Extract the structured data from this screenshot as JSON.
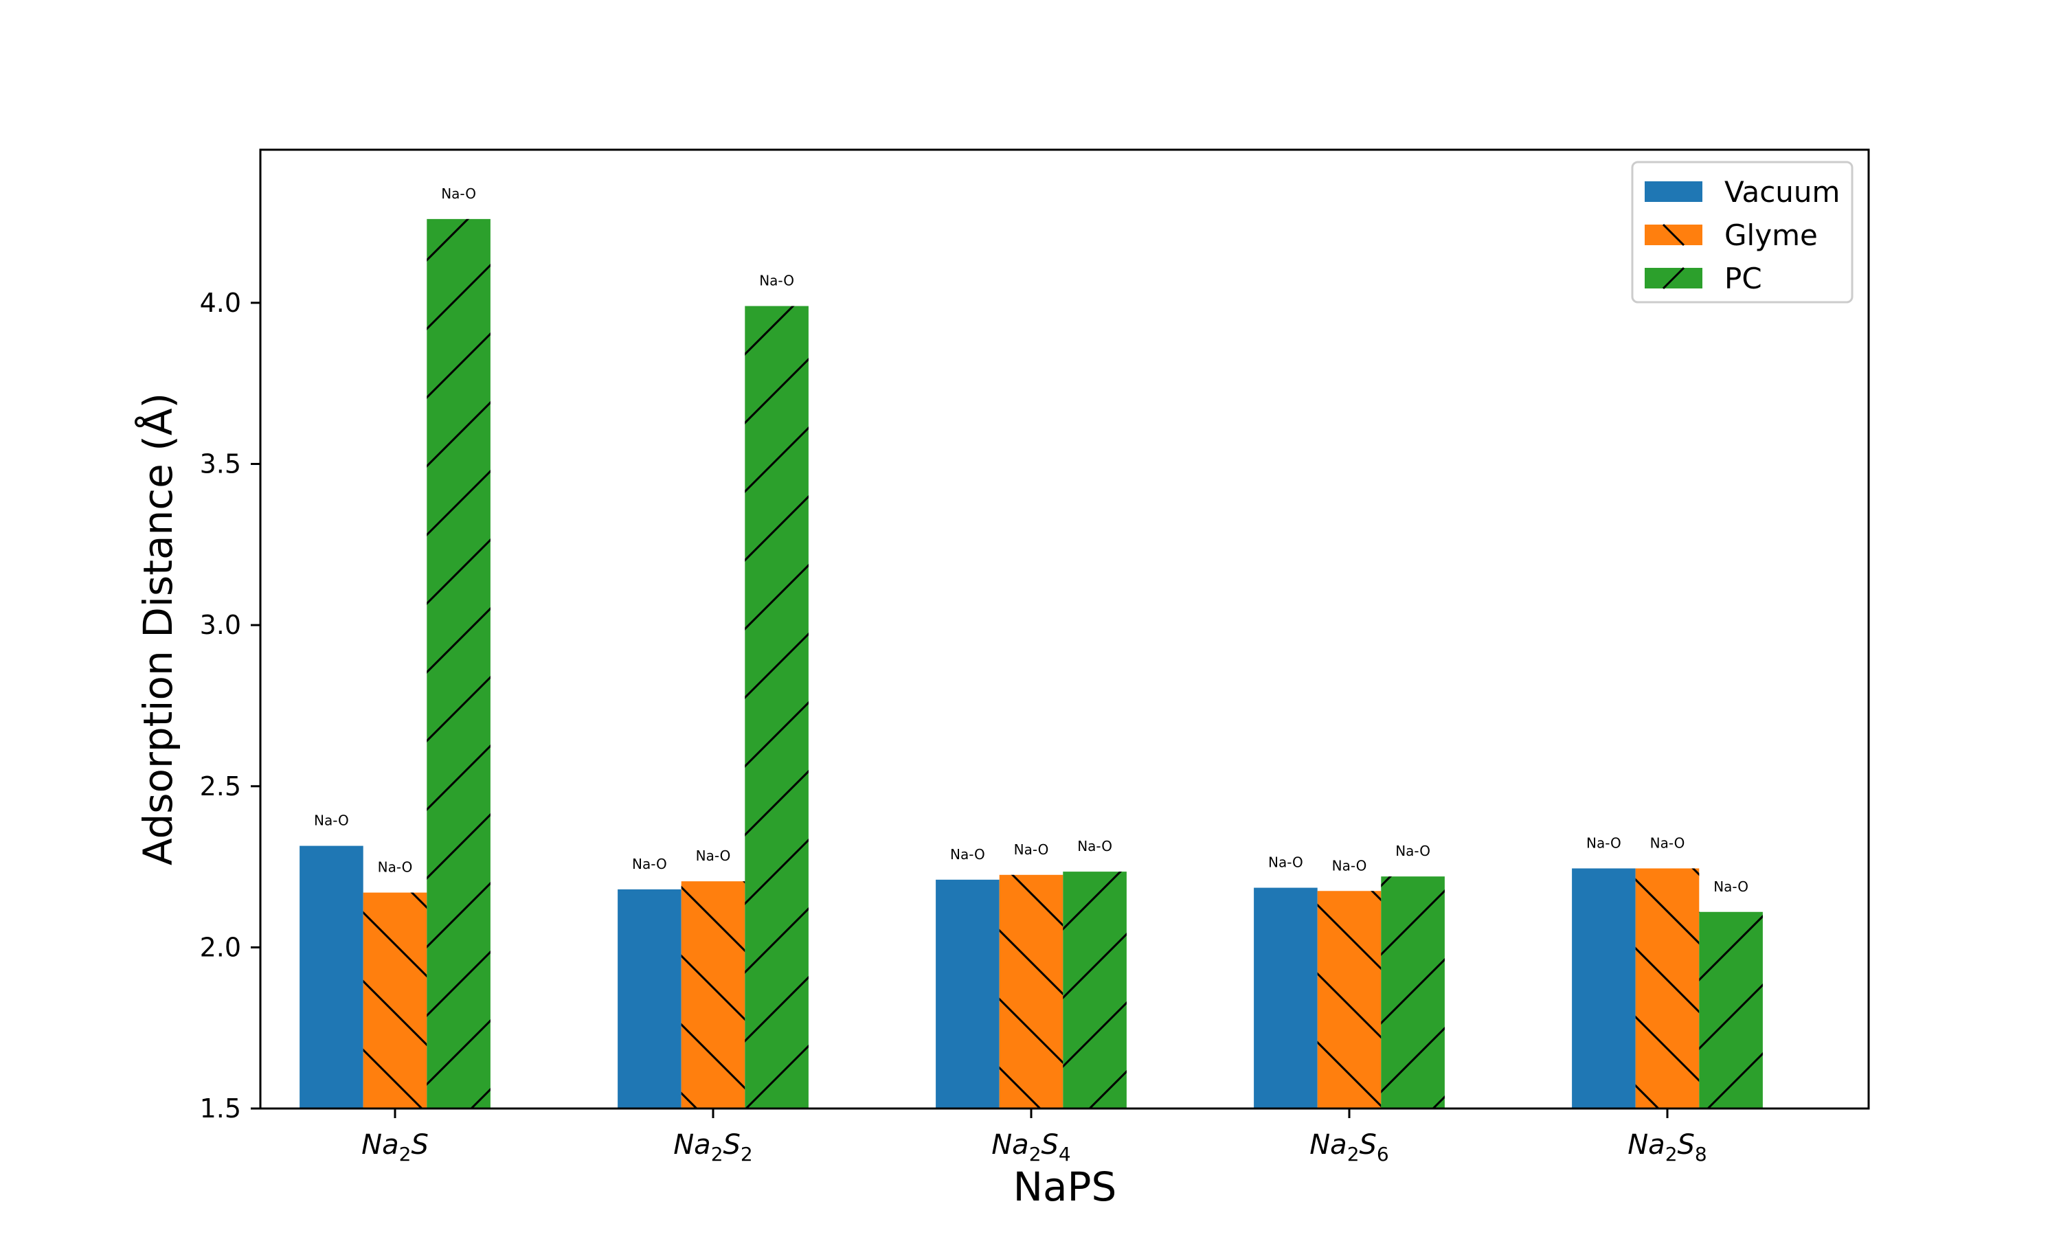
{
  "chart_data": {
    "type": "bar",
    "categories": [
      {
        "base": "Na",
        "sub": "2",
        "tail": "S",
        "tail_sub": ""
      },
      {
        "base": "Na",
        "sub": "2",
        "tail": "S",
        "tail_sub": "2"
      },
      {
        "base": "Na",
        "sub": "2",
        "tail": "S",
        "tail_sub": "4"
      },
      {
        "base": "Na",
        "sub": "2",
        "tail": "S",
        "tail_sub": "6"
      },
      {
        "base": "Na",
        "sub": "2",
        "tail": "S",
        "tail_sub": "8"
      }
    ],
    "series": [
      {
        "name": "Vacuum",
        "color": "#1f77b4",
        "hatch": "none",
        "values": [
          2.315,
          2.18,
          2.21,
          2.185,
          2.245
        ],
        "labels": [
          "Na-O",
          "Na-O",
          "Na-O",
          "Na-O",
          "Na-O"
        ]
      },
      {
        "name": "Glyme",
        "color": "#ff7f0e",
        "hatch": "backslash",
        "values": [
          2.17,
          2.205,
          2.225,
          2.175,
          2.245
        ],
        "labels": [
          "Na-O",
          "Na-O",
          "Na-O",
          "Na-O",
          "Na-O"
        ]
      },
      {
        "name": "PC",
        "color": "#2ca02c",
        "hatch": "slash",
        "values": [
          4.26,
          3.99,
          2.235,
          2.22,
          2.11
        ],
        "labels": [
          "Na-O",
          "Na-O",
          "Na-O",
          "Na-O",
          "Na-O"
        ]
      }
    ],
    "xlabel": "NaPS",
    "ylabel": "Adsorption Distance (Å)",
    "ylim": [
      1.5,
      4.475
    ],
    "yticks": [
      "1.5",
      "2.0",
      "2.5",
      "3.0",
      "3.5",
      "4.0"
    ],
    "legend_position": "top-right",
    "grid": false
  }
}
